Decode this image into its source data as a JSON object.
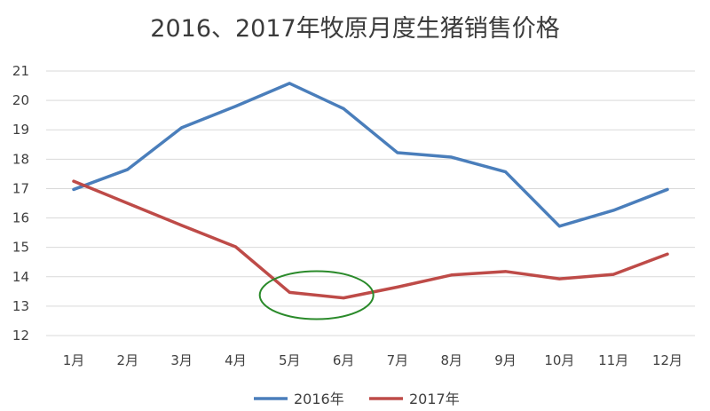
{
  "chart_data": {
    "type": "line",
    "title": "2016、2017年牧原月度生猪销售价格",
    "xlabel": "",
    "ylabel": "",
    "categories": [
      "1月",
      "2月",
      "3月",
      "4月",
      "5月",
      "6月",
      "7月",
      "8月",
      "9月",
      "10月",
      "11月",
      "12月"
    ],
    "ylim": [
      12,
      21
    ],
    "yticks": [
      12,
      13,
      14,
      15,
      16,
      17,
      18,
      19,
      20,
      21
    ],
    "grid": true,
    "legend_position": "bottom",
    "series": [
      {
        "name": "2016年",
        "color": "#4a7ebb",
        "values": [
          16.97,
          17.65,
          19.07,
          19.8,
          20.58,
          19.72,
          18.22,
          18.07,
          17.57,
          15.72,
          16.26,
          16.97
        ]
      },
      {
        "name": "2017年",
        "color": "#be4b48",
        "values": [
          17.25,
          16.5,
          15.75,
          15.02,
          13.47,
          13.28,
          13.65,
          14.06,
          14.18,
          13.93,
          14.08,
          14.77
        ]
      }
    ],
    "annotation": {
      "type": "ellipse",
      "color": "#2a8a2a",
      "around": [
        "5月",
        "6月"
      ],
      "series": "2017年"
    }
  }
}
